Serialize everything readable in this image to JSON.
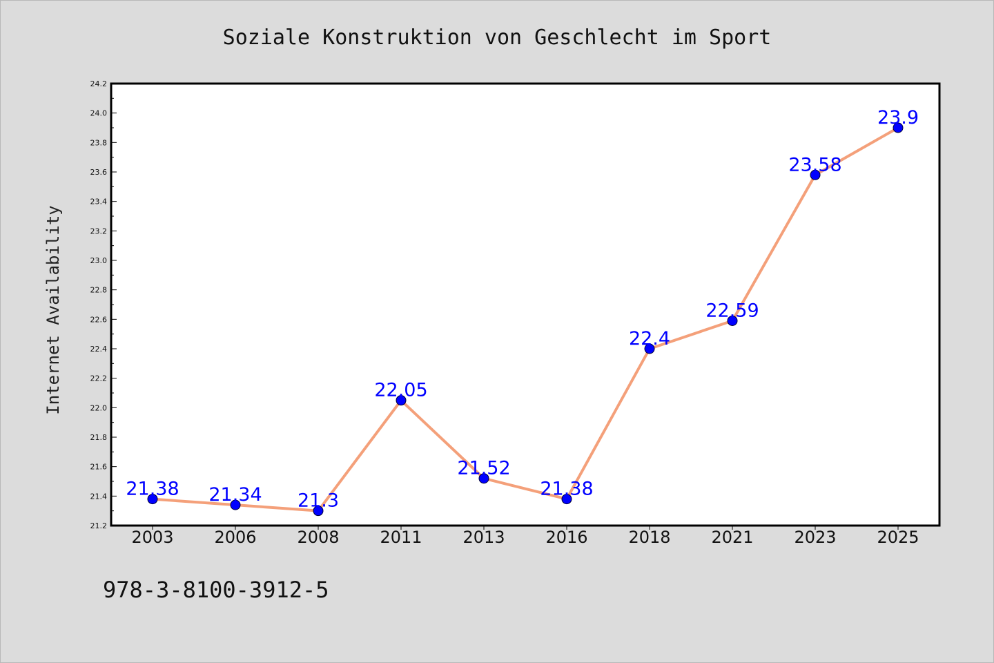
{
  "chart_data": {
    "type": "line",
    "title": "Soziale Konstruktion von Geschlecht im Sport",
    "ylabel": "Internet Availability",
    "xlabel": "",
    "categories": [
      "2003",
      "2006",
      "2008",
      "2011",
      "2013",
      "2016",
      "2018",
      "2021",
      "2023",
      "2025"
    ],
    "series": [
      {
        "values": [
          21.38,
          21.34,
          21.3,
          22.05,
          21.52,
          21.38,
          22.4,
          22.59,
          23.58,
          23.9
        ],
        "labels": [
          "21.38",
          "21.34",
          "21.3",
          "22.05",
          "21.52",
          "21.38",
          "22.4",
          "22.59",
          "23.58",
          "23.9"
        ],
        "line_color": "#f4a07a",
        "marker_color": "#0000ff"
      }
    ],
    "ylim": [
      21.2,
      24.2
    ],
    "y_ticks": [
      "21.2",
      "21.4",
      "21.6",
      "21.8",
      "22.0",
      "22.2",
      "22.4",
      "22.6",
      "22.8",
      "23.0",
      "23.2",
      "23.4",
      "23.6",
      "23.8",
      "24.0",
      "24.2"
    ],
    "grid": false,
    "legend": "none",
    "annotation_color": "#0000ff"
  },
  "footer": {
    "isbn": "978-3-8100-3912-5"
  }
}
